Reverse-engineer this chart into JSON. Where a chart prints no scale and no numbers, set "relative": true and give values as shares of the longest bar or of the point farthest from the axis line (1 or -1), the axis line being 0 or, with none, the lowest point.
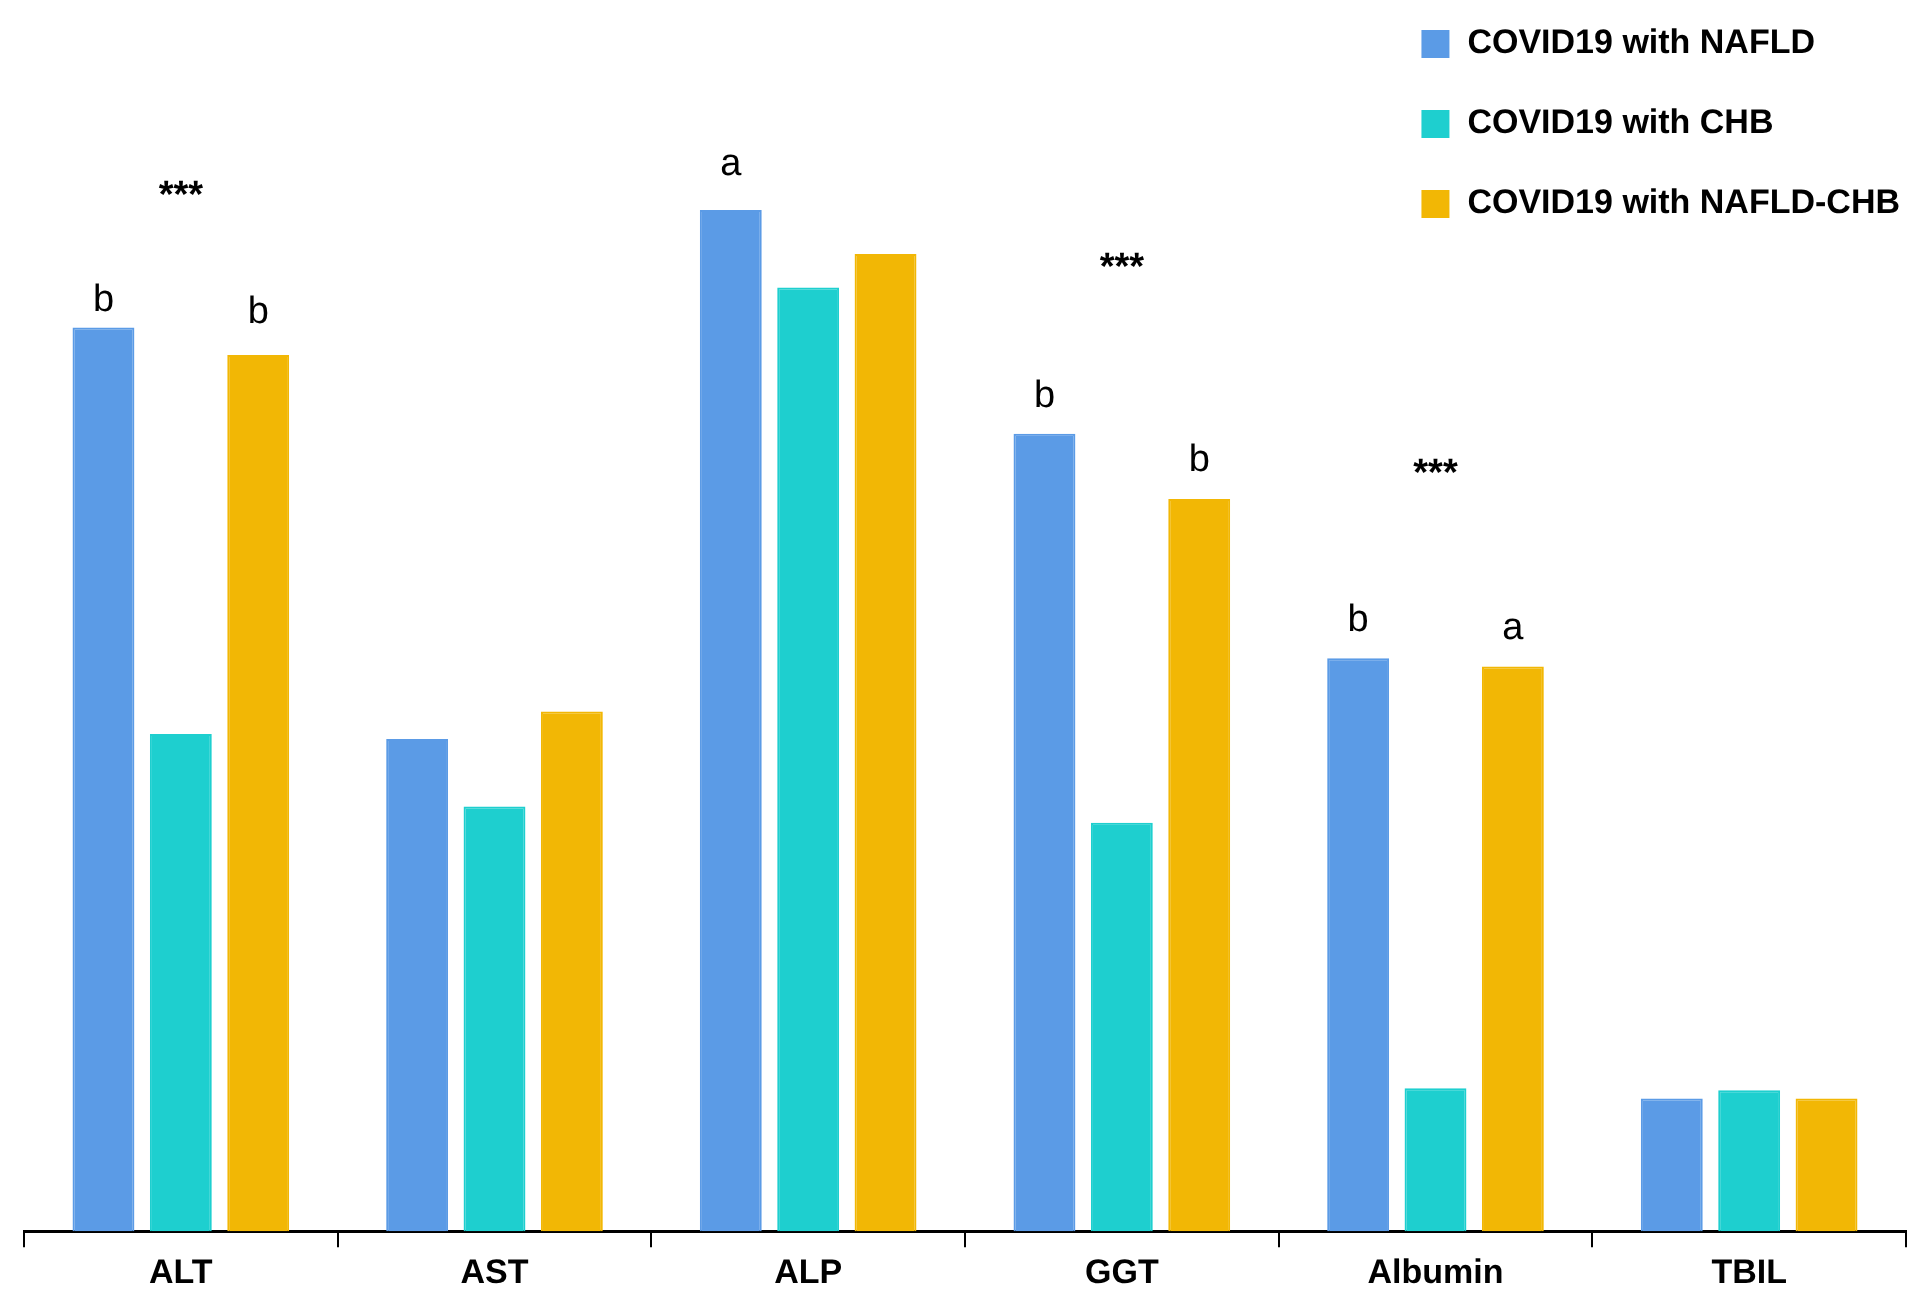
{
  "chart_data": {
    "type": "bar",
    "relative": true,
    "categories": [
      "ALT",
      "AST",
      "ALP",
      "GGT",
      "Albumin",
      "TBIL"
    ],
    "series": [
      {
        "name": "COVID19 with NAFLD",
        "color": "#5b9be6",
        "values": [
          0.885,
          0.482,
          1,
          0.781,
          0.561,
          0.13
        ]
      },
      {
        "name": "COVID19 with CHB",
        "color": "#1ecfcf",
        "values": [
          0.487,
          0.416,
          0.924,
          0.4,
          0.14,
          0.138
        ]
      },
      {
        "name": "COVID19 with NAFLD-CHB",
        "color": "#f2b705",
        "values": [
          0.858,
          0.509,
          0.957,
          0.717,
          0.553,
          0.13
        ]
      }
    ],
    "annotations": [
      "***",
      "b",
      "b",
      "a",
      "***",
      "b",
      "b",
      "***",
      "b",
      "a"
    ],
    "legend": "top right",
    "grid": false
  }
}
